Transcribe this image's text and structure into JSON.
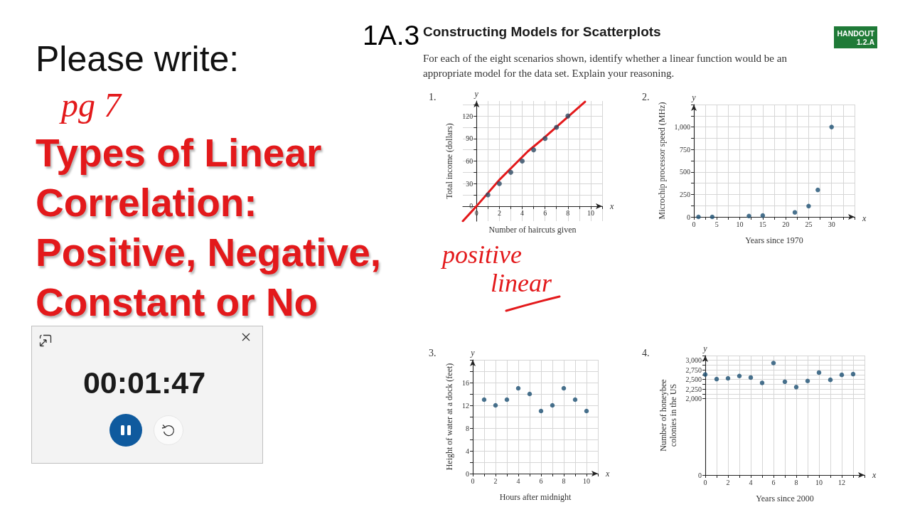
{
  "chart_data": [
    {
      "type": "other",
      "subtitle": "Please write:",
      "title": "Types of Linear Correlation: Positive, Negative, Constant or No",
      "annotations": [
        "pg 7",
        "00:01:47"
      ]
    },
    {
      "type": "other",
      "title": "Constructing Models for Scatterplots",
      "subtitle": "For each of the eight scenarios shown, identify whether a linear function would be an appropriate model for the data set. Explain your reasoning.",
      "annotations": [
        "1A.3",
        "HANDOUT 1.2.A"
      ]
    },
    {
      "type": "scatter",
      "title": "1.",
      "xlabel": "Number of haircuts given",
      "ylabel": "Total income (dollars)",
      "annotations": [
        "y",
        "x",
        "positive linear"
      ],
      "marker": "circle",
      "grid": true,
      "series": [
        {
          "color": "#2e4a63",
          "x": [
            1,
            2,
            3,
            4,
            5,
            6,
            7,
            8
          ],
          "values": [
            15,
            30,
            45,
            60,
            75,
            90,
            105,
            120
          ]
        },
        {
          "type": "line",
          "marker": "none",
          "color": "#e3191b",
          "x": [
            -1.2,
            0,
            2,
            4.5,
            6,
            9.5
          ],
          "values": [
            -20,
            0,
            35,
            73,
            92,
            139
          ]
        }
      ],
      "xlim": [
        -1.2,
        11
      ],
      "xticks": [
        0,
        {
          "value": 1,
          "label": null
        },
        2,
        {
          "value": 3,
          "label": null
        },
        4,
        {
          "value": 5,
          "label": null
        },
        6,
        {
          "value": 7,
          "label": null
        },
        8,
        {
          "value": 9,
          "label": null
        },
        10,
        {
          "value": 11,
          "label": null
        }
      ],
      "ylim": [
        -20,
        140
      ],
      "yticks": [
        0,
        {
          "value": 15,
          "label": null
        },
        30,
        {
          "value": 45,
          "label": null
        },
        60,
        {
          "value": 75,
          "label": null
        },
        90,
        {
          "value": 105,
          "label": null
        },
        120,
        {
          "value": 135,
          "label": null
        }
      ]
    },
    {
      "type": "scatter",
      "title": "2.",
      "xlabel": "Years since 1970",
      "ylabel": "Microchip processor speed (MHz)",
      "annotations": [
        "y",
        "x"
      ],
      "marker": "circle",
      "grid": true,
      "series": [
        {
          "color": "#1b4f72",
          "x": [
            1,
            4,
            12,
            15,
            22,
            25,
            27,
            30
          ],
          "values": [
            0,
            0,
            10,
            15,
            50,
            120,
            300,
            1000
          ]
        }
      ],
      "xlim": [
        0,
        35
      ],
      "xticks": [
        0,
        {
          "value": 2.5,
          "label": null
        },
        5,
        {
          "value": 7.5,
          "label": null
        },
        10,
        {
          "value": 12.5,
          "label": null
        },
        15,
        {
          "value": 17.5,
          "label": null
        },
        20,
        {
          "value": 22.5,
          "label": null
        },
        25,
        {
          "value": 27.5,
          "label": null
        },
        30,
        {
          "value": 32.5,
          "label": null
        },
        {
          "value": 35,
          "label": null
        }
      ],
      "ylim": [
        0,
        1250
      ],
      "yticks": [
        0,
        {
          "value": 125,
          "label": null
        },
        250,
        {
          "value": 375,
          "label": null
        },
        500,
        {
          "value": 625,
          "label": null
        },
        750,
        {
          "value": 875,
          "label": null
        },
        {
          "value": 1000,
          "label": "1,000"
        },
        {
          "value": 1125,
          "label": null
        },
        {
          "value": 1250,
          "label": null
        }
      ]
    },
    {
      "type": "scatter",
      "title": "3.",
      "xlabel": "Hours after midnight",
      "ylabel": "Height of water at a dock (feet)",
      "annotations": [
        "y",
        "x"
      ],
      "marker": "circle",
      "grid": true,
      "series": [
        {
          "color": "#1b4f72",
          "x": [
            1,
            2,
            3,
            4,
            5,
            6,
            7,
            8,
            9,
            10
          ],
          "values": [
            13,
            12,
            13,
            15,
            14,
            11,
            12,
            15,
            13,
            11
          ]
        }
      ],
      "xlim": [
        0,
        11
      ],
      "xticks": [
        0,
        {
          "value": 1,
          "label": null
        },
        2,
        {
          "value": 3,
          "label": null
        },
        4,
        {
          "value": 5,
          "label": null
        },
        6,
        {
          "value": 7,
          "label": null
        },
        8,
        {
          "value": 9,
          "label": null
        },
        10,
        {
          "value": 11,
          "label": null
        }
      ],
      "ylim": [
        0,
        20
      ],
      "yticks": [
        0,
        {
          "value": 2,
          "label": null
        },
        4,
        {
          "value": 6,
          "label": null
        },
        8,
        {
          "value": 10,
          "label": null
        },
        12,
        {
          "value": 14,
          "label": null
        },
        16,
        {
          "value": 18,
          "label": null
        },
        {
          "value": 20,
          "label": null
        }
      ]
    },
    {
      "type": "scatter",
      "title": "4.",
      "xlabel": "Years since 2000",
      "ylabel": "Number of honeybee colonies in the US",
      "annotations": [
        "y",
        "x"
      ],
      "marker": "circle",
      "grid": true,
      "series": [
        {
          "color": "#1b4f72",
          "x": [
            0,
            1,
            2,
            3,
            4,
            5,
            6,
            7,
            8,
            9,
            10,
            11,
            12,
            13
          ],
          "values": [
            2630,
            2510,
            2530,
            2590,
            2550,
            2410,
            2930,
            2440,
            2300,
            2460,
            2680,
            2490,
            2620,
            2640
          ]
        }
      ],
      "xlim": [
        0,
        14
      ],
      "xticks": [
        0,
        {
          "value": 1,
          "label": null
        },
        2,
        {
          "value": 3,
          "label": null
        },
        4,
        {
          "value": 5,
          "label": null
        },
        6,
        {
          "value": 7,
          "label": null
        },
        8,
        {
          "value": 9,
          "label": null
        },
        10,
        {
          "value": 11,
          "label": null
        },
        12,
        {
          "value": 13,
          "label": null
        },
        {
          "value": 14,
          "label": null
        }
      ],
      "ylim": [
        0,
        3125
      ],
      "yticks": [
        0,
        {
          "value": 2000,
          "label": "2,000"
        },
        {
          "value": 2125,
          "label": null
        },
        {
          "value": 2250,
          "label": "2,250"
        },
        {
          "value": 2375,
          "label": null
        },
        {
          "value": 2500,
          "label": "2,500"
        },
        {
          "value": 2625,
          "label": null
        },
        {
          "value": 2750,
          "label": "2,750"
        },
        {
          "value": 2875,
          "label": null
        },
        {
          "value": 3000,
          "label": "3,000"
        },
        {
          "value": 3125,
          "label": null
        }
      ]
    }
  ]
}
